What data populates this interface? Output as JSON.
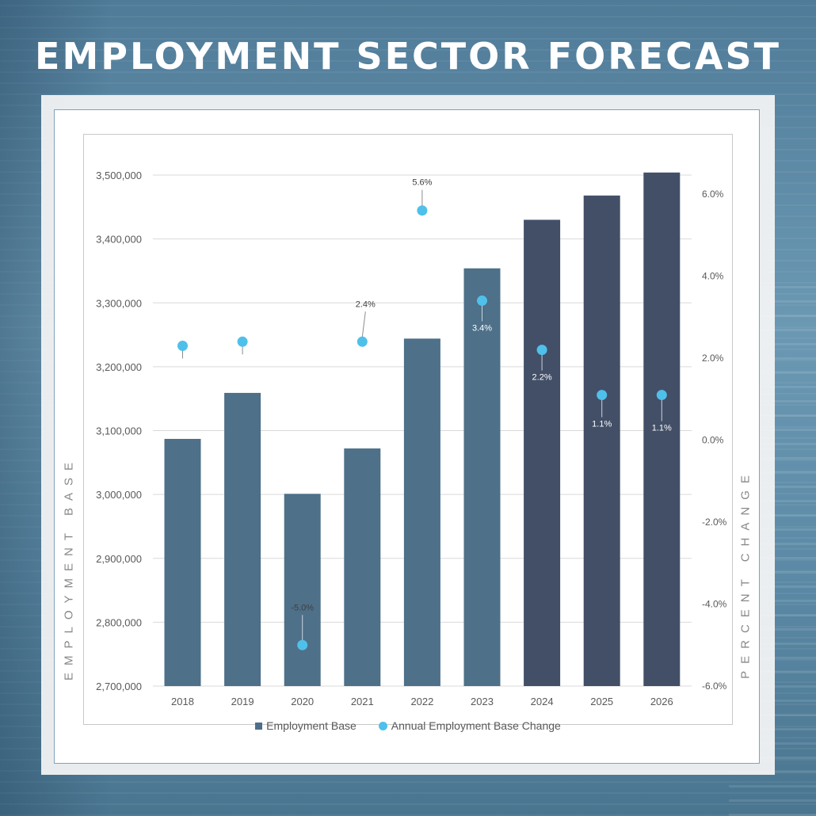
{
  "title": "EMPLOYMENT SECTOR FORECAST",
  "chart_data": {
    "type": "bar",
    "categories": [
      "2018",
      "2019",
      "2020",
      "2021",
      "2022",
      "2023",
      "2024",
      "2025",
      "2026"
    ],
    "series": [
      {
        "name": "Employment Base",
        "type": "bar",
        "axis": "left",
        "values": [
          3087000,
          3159000,
          3001000,
          3072000,
          3244000,
          3354000,
          3430000,
          3468000,
          3504000
        ],
        "colors": [
          "#4e7089",
          "#4e7089",
          "#4e7089",
          "#4e7089",
          "#4e7089",
          "#4e7089",
          "#424f67",
          "#424f67",
          "#424f67"
        ]
      },
      {
        "name": "Annual Employment Base Change",
        "type": "scatter",
        "axis": "right",
        "values": [
          2.3,
          2.4,
          -5.0,
          2.4,
          5.6,
          3.4,
          2.2,
          1.1,
          1.1
        ],
        "labels": [
          "",
          "",
          "-5.0%",
          "2.4%",
          "5.6%",
          "3.4%",
          "2.2%",
          "1.1%",
          "1.1%"
        ],
        "color": "#4fc0ea"
      }
    ],
    "y_left": {
      "label": "EMPLOYMENT BASE",
      "ylim": [
        2700000,
        3500000
      ],
      "ticks": [
        "2,700,000",
        "2,800,000",
        "2,900,000",
        "3,000,000",
        "3,100,000",
        "3,200,000",
        "3,300,000",
        "3,400,000",
        "3,500,000"
      ]
    },
    "y_right": {
      "label": "PERCENT CHANGE",
      "ylim": [
        -6,
        6
      ],
      "ticks": [
        "-6.0%",
        "-4.0%",
        "-2.0%",
        "0.0%",
        "2.0%",
        "4.0%",
        "6.0%"
      ]
    },
    "legend": [
      "Employment Base",
      "Annual Employment Base Change"
    ],
    "legend_position": "bottom",
    "grid": true
  }
}
